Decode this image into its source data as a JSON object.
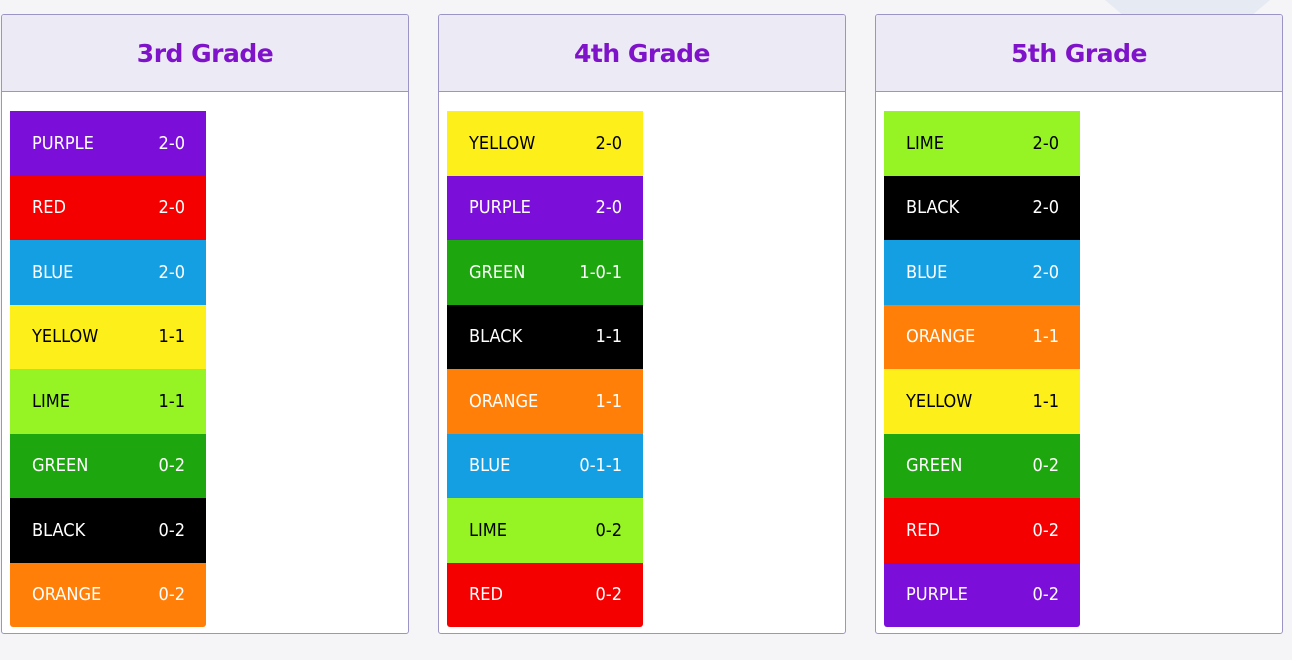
{
  "accent_color": "#7f13c9",
  "team_colors": {
    "PURPLE": {
      "bg": "#7b0fd9",
      "fg": "#ffffff"
    },
    "RED": {
      "bg": "#f40000",
      "fg": "#ffffff"
    },
    "BLUE": {
      "bg": "#149fe3",
      "fg": "#ffffff"
    },
    "YELLOW": {
      "bg": "#fdf01a",
      "fg": "#000000"
    },
    "LIME": {
      "bg": "#96f425",
      "fg": "#000000"
    },
    "GREEN": {
      "bg": "#1da60d",
      "fg": "#ffffff"
    },
    "BLACK": {
      "bg": "#000000",
      "fg": "#ffffff"
    },
    "ORANGE": {
      "bg": "#ff7f08",
      "fg": "#ffffff"
    }
  },
  "grades": [
    {
      "title": "3rd Grade",
      "teams": [
        {
          "name": "PURPLE",
          "record": "2-0"
        },
        {
          "name": "RED",
          "record": "2-0"
        },
        {
          "name": "BLUE",
          "record": "2-0"
        },
        {
          "name": "YELLOW",
          "record": "1-1"
        },
        {
          "name": "LIME",
          "record": "1-1"
        },
        {
          "name": "GREEN",
          "record": "0-2"
        },
        {
          "name": "BLACK",
          "record": "0-2"
        },
        {
          "name": "ORANGE",
          "record": "0-2"
        }
      ]
    },
    {
      "title": "4th Grade",
      "teams": [
        {
          "name": "YELLOW",
          "record": "2-0"
        },
        {
          "name": "PURPLE",
          "record": "2-0"
        },
        {
          "name": "GREEN",
          "record": "1-0-1"
        },
        {
          "name": "BLACK",
          "record": "1-1"
        },
        {
          "name": "ORANGE",
          "record": "1-1"
        },
        {
          "name": "BLUE",
          "record": "0-1-1"
        },
        {
          "name": "LIME",
          "record": "0-2"
        },
        {
          "name": "RED",
          "record": "0-2"
        }
      ]
    },
    {
      "title": "5th Grade",
      "teams": [
        {
          "name": "LIME",
          "record": "2-0"
        },
        {
          "name": "BLACK",
          "record": "2-0"
        },
        {
          "name": "BLUE",
          "record": "2-0"
        },
        {
          "name": "ORANGE",
          "record": "1-1"
        },
        {
          "name": "YELLOW",
          "record": "1-1"
        },
        {
          "name": "GREEN",
          "record": "0-2"
        },
        {
          "name": "RED",
          "record": "0-2"
        },
        {
          "name": "PURPLE",
          "record": "0-2"
        }
      ]
    }
  ]
}
